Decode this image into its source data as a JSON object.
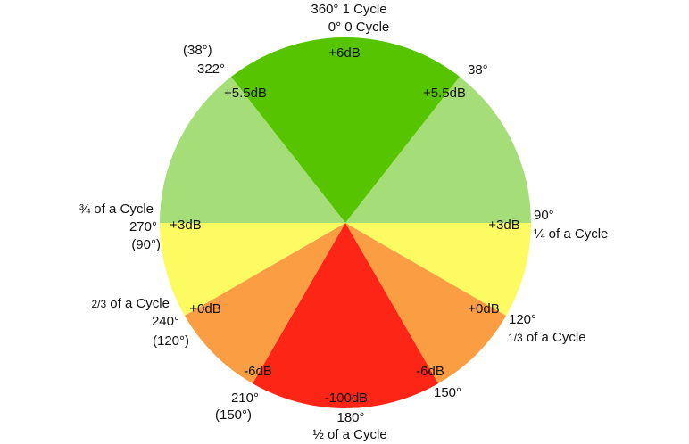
{
  "diagram": {
    "sectors": [
      {
        "id": "top",
        "from_deg": 322,
        "to_deg": 38,
        "color": "#56c500",
        "db_label": "+6dB"
      },
      {
        "id": "upper-right",
        "from_deg": 38,
        "to_deg": 90,
        "color": "#a5de78",
        "db_label": "+5.5dB"
      },
      {
        "id": "lower-right-yellow",
        "from_deg": 90,
        "to_deg": 120,
        "color": "#fcfc62",
        "db_label": "+3dB"
      },
      {
        "id": "lower-right-orange",
        "from_deg": 120,
        "to_deg": 150,
        "color": "#fb9d43",
        "db_label": "+0dB"
      },
      {
        "id": "bottom",
        "from_deg": 150,
        "to_deg": 210,
        "color": "#fd2516",
        "db_label": "-6dB"
      },
      {
        "id": "lower-left-orange",
        "from_deg": 210,
        "to_deg": 240,
        "color": "#fb9d43",
        "db_label": "-6dB"
      },
      {
        "id": "lower-left-yellow",
        "from_deg": 240,
        "to_deg": 270,
        "color": "#fcfc62",
        "db_label": "+0dB"
      },
      {
        "id": "upper-left",
        "from_deg": 270,
        "to_deg": 322,
        "color": "#a5de78",
        "db_label": "+3dB"
      }
    ],
    "db_labels": {
      "top": "+6dB",
      "left_55": "+5.5dB",
      "right_55": "+5.5dB",
      "left_3": "+3dB",
      "right_3": "+3dB",
      "left_0": "+0dB",
      "right_0": "+0dB",
      "left_m6": "-6dB",
      "right_m6": "-6dB",
      "bottom": "-100dB"
    },
    "angle_labels": {
      "top_line1": "360° 1 Cycle",
      "top_line2": "0° 0 Cycle",
      "a38": "38°",
      "a322_paren": "(38°)",
      "a322": "322°",
      "a90": "90°",
      "a90_cycle": "¼ of a Cycle",
      "a270_cycle": "¾ of a Cycle",
      "a270": "270°",
      "a270_paren": "(90°)",
      "a120": "120°",
      "a120_cycle_frac": "1/3",
      "a120_cycle_text": " of a Cycle",
      "a240_cycle_frac": "2/3",
      "a240_cycle_text": " of a Cycle",
      "a240": "240°",
      "a240_paren": "(120°)",
      "a150": "150°",
      "a210": "210°",
      "a210_paren": "(150°)",
      "a180": "180°",
      "a180_cycle": "½ of a Cycle"
    }
  }
}
